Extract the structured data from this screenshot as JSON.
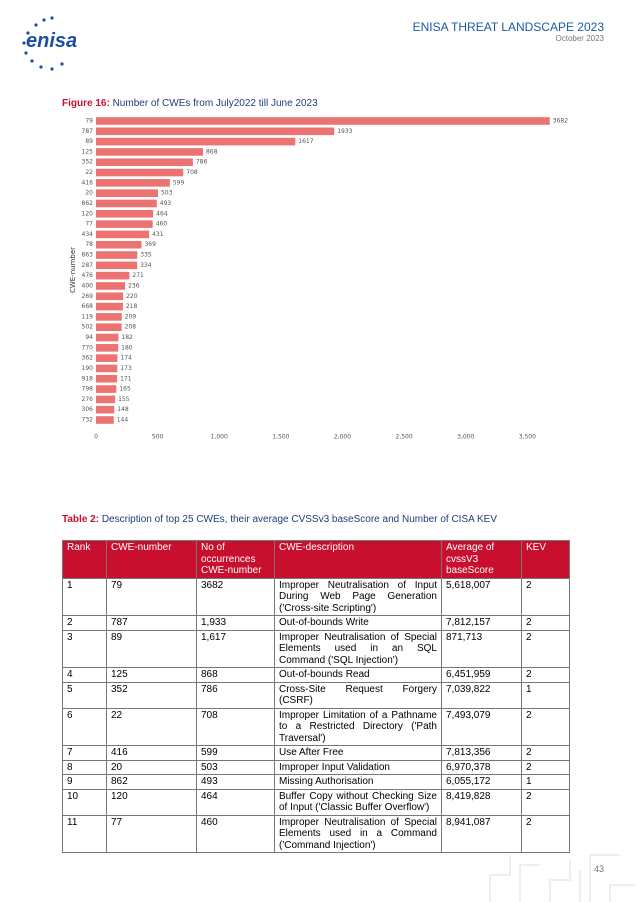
{
  "header": {
    "title": "ENISA THREAT LANDSCAPE 2023",
    "date": "October 2023",
    "logo": "enisa"
  },
  "figure": {
    "label": "Figure 16:",
    "caption": "Number of CWEs from July2022 till June 2023",
    "chart_data": {
      "type": "hbar",
      "ylabel": "CWE-number",
      "color": "#eb7371",
      "categories": [
        "79",
        "787",
        "89",
        "125",
        "352",
        "22",
        "416",
        "20",
        "862",
        "120",
        "77",
        "434",
        "78",
        "863",
        "287",
        "476",
        "400",
        "269",
        "668",
        "119",
        "502",
        "94",
        "770",
        "362",
        "190",
        "918",
        "798",
        "276",
        "306",
        "732"
      ],
      "values": [
        3682,
        1933,
        1617,
        868,
        786,
        708,
        599,
        503,
        493,
        464,
        460,
        431,
        369,
        335,
        334,
        271,
        236,
        220,
        218,
        209,
        208,
        182,
        180,
        174,
        173,
        171,
        165,
        155,
        148,
        144
      ],
      "xlim": [
        0,
        3700
      ],
      "xticks": [
        0,
        500,
        {
          "value": 1000,
          "label": "1,000"
        },
        {
          "value": 1500,
          "label": "1,500"
        },
        {
          "value": 2000,
          "label": "2,000"
        },
        {
          "value": 2500,
          "label": "2,500"
        },
        {
          "value": 3000,
          "label": "3,000"
        },
        {
          "value": 3500,
          "label": "3,500"
        }
      ],
      "grid": false
    }
  },
  "table": {
    "label": "Table 2:",
    "caption": "Description of top 25 CWEs, their average CVSSv3 baseScore and Number of CISA KEV",
    "columns": [
      "Rank",
      "CWE-number",
      "No of occurrences CWE-number",
      "CWE-description",
      "Average of cvssV3 baseScore",
      "KEV"
    ],
    "rows": [
      [
        "1",
        "79",
        "3682",
        "Improper Neutralisation of Input During Web Page Generation ('Cross-site Scripting')",
        "5,618,007",
        "2"
      ],
      [
        "2",
        "787",
        "1,933",
        "Out-of-bounds Write",
        "7,812,157",
        "2"
      ],
      [
        "3",
        "89",
        "1,617",
        "Improper Neutralisation of Special Elements used in an SQL Command ('SQL Injection')",
        "871,713",
        "2"
      ],
      [
        "4",
        "125",
        "868",
        "Out-of-bounds Read",
        "6,451,959",
        "2"
      ],
      [
        "5",
        "352",
        "786",
        "Cross-Site Request Forgery (CSRF)",
        "7,039,822",
        "1"
      ],
      [
        "6",
        "22",
        "708",
        "Improper Limitation of a Pathname to a Restricted Directory ('Path Traversal')",
        "7,493,079",
        "2"
      ],
      [
        "7",
        "416",
        "599",
        "Use After Free",
        "7,813,356",
        "2"
      ],
      [
        "8",
        "20",
        "503",
        "Improper Input Validation",
        "6,970,378",
        "2"
      ],
      [
        "9",
        "862",
        "493",
        "Missing Authorisation",
        "6,055,172",
        "1"
      ],
      [
        "10",
        "120",
        "464",
        "Buffer Copy without Checking Size of Input ('Classic Buffer Overflow')",
        "8,419,828",
        "2"
      ],
      [
        "11",
        "77",
        "460",
        "Improper Neutralisation of Special Elements used in a Command ('Command Injection')",
        "8,941,087",
        "2"
      ]
    ]
  },
  "page_number": "43"
}
